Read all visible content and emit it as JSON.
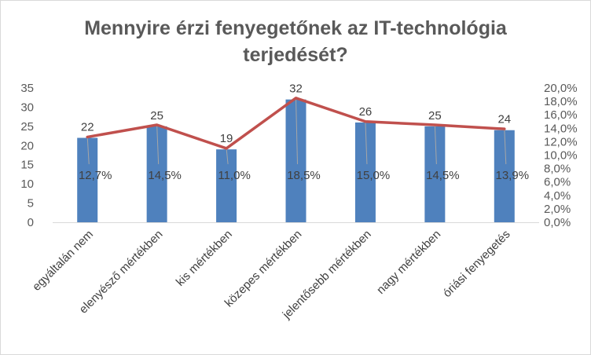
{
  "chart_data": {
    "type": "bar",
    "title_line1": "Mennyire érzi fenyegetőnek az IT-technológia",
    "title_line2": "terjedését?",
    "categories": [
      "egyáltalán nem",
      "elenyésző mértékben",
      "kis mértékben",
      "közepes mértékben",
      "jelentősebb mértékben",
      "nagy mértékben",
      "óriási fenyegetés"
    ],
    "bar_values": [
      22,
      25,
      19,
      32,
      26,
      25,
      24
    ],
    "bar_labels": [
      "22",
      "25",
      "19",
      "32",
      "26",
      "25",
      "24"
    ],
    "line_values": [
      12.7,
      14.5,
      11.0,
      18.5,
      15.0,
      14.5,
      13.9
    ],
    "line_labels": [
      "12,7%",
      "14,5%",
      "11,0%",
      "18,5%",
      "15,0%",
      "14,5%",
      "13,9%"
    ],
    "ylim_left": [
      0,
      35
    ],
    "yticks_left": [
      "0",
      "5",
      "10",
      "15",
      "20",
      "25",
      "30",
      "35"
    ],
    "ylim_right": [
      0,
      20
    ],
    "yticks_right": [
      "0,0%",
      "2,0%",
      "4,0%",
      "6,0%",
      "8,0%",
      "10,0%",
      "12,0%",
      "14,0%",
      "16,0%",
      "18,0%",
      "20,0%"
    ],
    "bar_color": "#4f81bd",
    "line_color": "#c0504d",
    "grid": false,
    "legend": "none"
  }
}
